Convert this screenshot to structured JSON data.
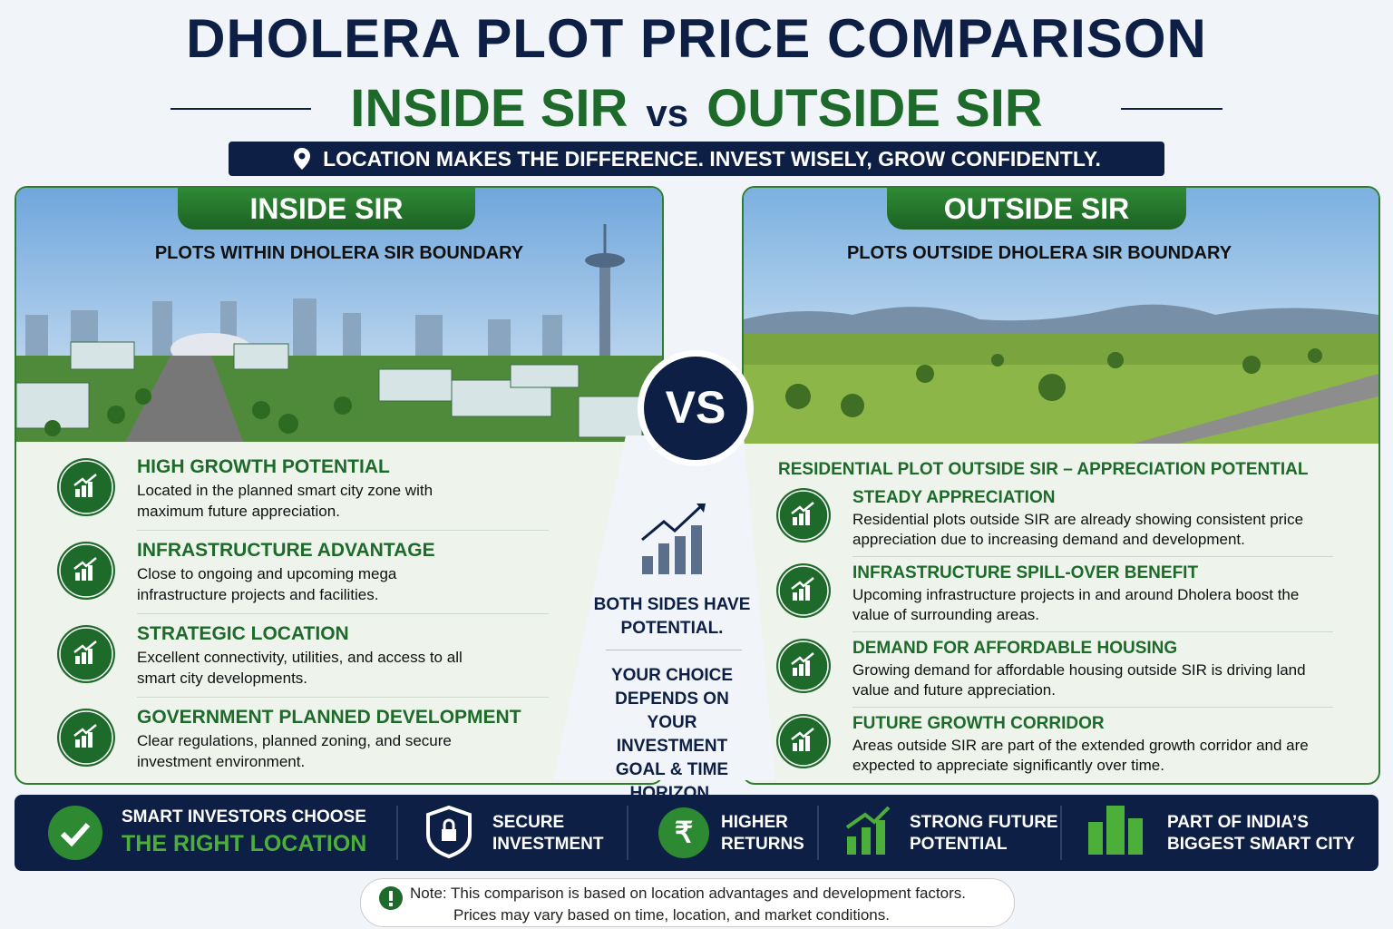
{
  "header": {
    "title": "DHOLERA PLOT PRICE COMPARISON",
    "subtitle_left": "INSIDE SIR",
    "subtitle_vs": "vs",
    "subtitle_right": "OUTSIDE SIR",
    "tagline": "LOCATION MAKES THE DIFFERENCE. INVEST WISELY, GROW CONFIDENTLY."
  },
  "inside": {
    "title": "INSIDE SIR",
    "subtitle": "PLOTS WITHIN DHOLERA SIR BOUNDARY",
    "items": [
      {
        "heading": "HIGH GROWTH POTENTIAL",
        "text": "Located in the planned smart city zone with maximum future appreciation."
      },
      {
        "heading": "INFRASTRUCTURE ADVANTAGE",
        "text": "Close to ongoing and upcoming mega infrastructure projects and facilities."
      },
      {
        "heading": "STRATEGIC LOCATION",
        "text": "Excellent connectivity, utilities, and access to all smart city developments."
      },
      {
        "heading": "GOVERNMENT PLANNED DEVELOPMENT",
        "text": "Clear regulations, planned zoning, and secure investment environment."
      }
    ]
  },
  "center": {
    "vs": "VS",
    "note1": "BOTH SIDES HAVE POTENTIAL.",
    "note2": "YOUR CHOICE DEPENDS ON YOUR INVESTMENT GOAL & TIME HORIZON."
  },
  "outside": {
    "title": "OUTSIDE SIR",
    "subtitle": "PLOTS OUTSIDE DHOLERA SIR BOUNDARY",
    "section_heading": "RESIDENTIAL PLOT OUTSIDE SIR – APPRECIATION POTENTIAL",
    "items": [
      {
        "heading": "STEADY APPRECIATION",
        "text": "Residential plots outside SIR are already showing consistent price appreciation due to increasing demand and development."
      },
      {
        "heading": "INFRASTRUCTURE SPILL-OVER BENEFIT",
        "text": "Upcoming infrastructure projects in and around Dholera boost the value of surrounding areas."
      },
      {
        "heading": "DEMAND FOR AFFORDABLE HOUSING",
        "text": "Growing demand for affordable housing outside SIR is driving land value and future appreciation."
      },
      {
        "heading": "FUTURE GROWTH CORRIDOR",
        "text": "Areas outside SIR are part of the extended growth corridor and are expected to appreciate significantly over time."
      }
    ]
  },
  "footer_bar": {
    "lead_line1": "SMART INVESTORS CHOOSE",
    "lead_line2": "THE RIGHT LOCATION",
    "items": [
      {
        "line1": "SECURE",
        "line2": "INVESTMENT"
      },
      {
        "line1": "HIGHER",
        "line2": "RETURNS"
      },
      {
        "line1": "STRONG FUTURE",
        "line2": "POTENTIAL"
      },
      {
        "line1": "PART OF INDIA’S",
        "line2": "BIGGEST SMART CITY"
      }
    ]
  },
  "note": {
    "line1": "Note: This comparison is based on location advantages and development factors.",
    "line2": "Prices may vary based on time, location, and market conditions."
  }
}
